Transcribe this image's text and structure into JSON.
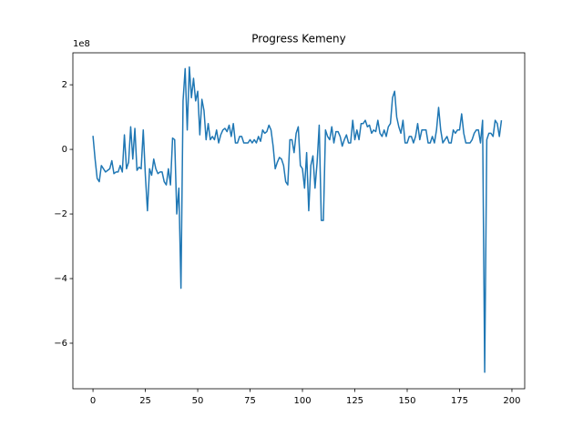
{
  "chart_data": {
    "type": "line",
    "title": "Progress Kemeny",
    "y_offset_label": "1e8",
    "xlim": [
      -9.6,
      206.1
    ],
    "xticks": [
      0,
      25,
      50,
      75,
      100,
      125,
      150,
      175,
      200
    ],
    "ylim": [
      -7.41,
      2.99
    ],
    "yticks": [
      {
        "value": -6,
        "label": "−6"
      },
      {
        "value": -4,
        "label": "−4"
      },
      {
        "value": -2,
        "label": "−2"
      },
      0,
      2
    ],
    "series": [
      {
        "color": "#1f77b4",
        "x": [
          0,
          1,
          2,
          3,
          4,
          5,
          6,
          7,
          8,
          9,
          10,
          11,
          12,
          13,
          14,
          15,
          16,
          17,
          18,
          19,
          20,
          21,
          22,
          23,
          24,
          25,
          26,
          27,
          28,
          29,
          30,
          31,
          32,
          33,
          34,
          35,
          36,
          37,
          38,
          39,
          40,
          41,
          42,
          43,
          44,
          45,
          46,
          47,
          48,
          49,
          50,
          51,
          52,
          53,
          54,
          55,
          56,
          57,
          58,
          59,
          60,
          61,
          62,
          63,
          64,
          65,
          66,
          67,
          68,
          69,
          70,
          71,
          72,
          73,
          74,
          75,
          76,
          77,
          78,
          79,
          80,
          81,
          82,
          83,
          84,
          85,
          86,
          87,
          88,
          89,
          90,
          91,
          92,
          93,
          94,
          95,
          96,
          97,
          98,
          99,
          100,
          101,
          102,
          103,
          104,
          105,
          106,
          107,
          108,
          109,
          110,
          111,
          112,
          113,
          114,
          115,
          116,
          117,
          118,
          119,
          120,
          121,
          122,
          123,
          124,
          125,
          126,
          127,
          128,
          129,
          130,
          131,
          132,
          133,
          134,
          135,
          136,
          137,
          138,
          139,
          140,
          141,
          142,
          143,
          144,
          145,
          146,
          147,
          148,
          149,
          150,
          151,
          152,
          153,
          154,
          155,
          156,
          157,
          158,
          159,
          160,
          161,
          162,
          163,
          164,
          165,
          166,
          167,
          168,
          169,
          170,
          171,
          172,
          173,
          174,
          175,
          176,
          177,
          178,
          179,
          180,
          181,
          182,
          183,
          184,
          185,
          186,
          187,
          188,
          189,
          190,
          191,
          192,
          193,
          194,
          195
        ],
        "values": [
          0.42,
          -0.3,
          -0.9,
          -1.0,
          -0.5,
          -0.6,
          -0.7,
          -0.65,
          -0.6,
          -0.35,
          -0.75,
          -0.7,
          -0.7,
          -0.5,
          -0.7,
          0.45,
          -0.6,
          -0.4,
          0.7,
          -0.3,
          0.65,
          -0.65,
          -0.55,
          -0.6,
          0.6,
          -0.8,
          -1.9,
          -0.6,
          -0.8,
          -0.3,
          -0.6,
          -0.75,
          -0.7,
          -0.7,
          -1.0,
          -1.1,
          -0.6,
          -1.1,
          0.35,
          0.3,
          -2.0,
          -1.2,
          -4.3,
          1.5,
          2.5,
          0.6,
          2.55,
          1.6,
          2.2,
          1.5,
          1.8,
          0.45,
          1.55,
          1.2,
          0.3,
          0.8,
          0.3,
          0.4,
          0.3,
          0.6,
          0.2,
          0.45,
          0.6,
          0.65,
          0.55,
          0.75,
          0.4,
          0.8,
          0.2,
          0.2,
          0.4,
          0.4,
          0.2,
          0.2,
          0.2,
          0.3,
          0.2,
          0.3,
          0.2,
          0.4,
          0.25,
          0.6,
          0.5,
          0.55,
          0.75,
          0.6,
          0.1,
          -0.6,
          -0.4,
          -0.25,
          -0.3,
          -0.5,
          -1.0,
          -1.1,
          0.3,
          0.3,
          -0.1,
          0.5,
          0.7,
          -0.5,
          -0.6,
          -1.2,
          -0.1,
          -1.9,
          -0.5,
          -0.2,
          -1.2,
          -0.4,
          0.75,
          -2.2,
          -2.2,
          0.6,
          0.4,
          0.3,
          0.7,
          0.2,
          0.55,
          0.55,
          0.4,
          0.1,
          0.3,
          0.45,
          0.2,
          0.2,
          0.9,
          0.3,
          0.6,
          0.3,
          0.8,
          0.8,
          0.9,
          0.7,
          0.75,
          0.5,
          0.6,
          0.55,
          0.9,
          0.5,
          0.4,
          0.6,
          0.4,
          0.7,
          0.8,
          1.6,
          1.8,
          1.0,
          0.7,
          0.5,
          0.9,
          0.2,
          0.2,
          0.4,
          0.4,
          0.2,
          0.4,
          0.8,
          0.3,
          0.6,
          0.6,
          0.6,
          0.2,
          0.2,
          0.4,
          0.2,
          0.6,
          1.3,
          0.6,
          0.2,
          0.3,
          0.4,
          0.2,
          0.2,
          0.6,
          0.5,
          0.6,
          0.6,
          1.1,
          0.5,
          0.2,
          0.2,
          0.2,
          0.3,
          0.5,
          0.6,
          0.6,
          0.2,
          0.9,
          -6.9,
          0.3,
          0.5,
          0.5,
          0.4,
          0.9,
          0.8,
          0.4,
          0.9
        ]
      }
    ]
  }
}
